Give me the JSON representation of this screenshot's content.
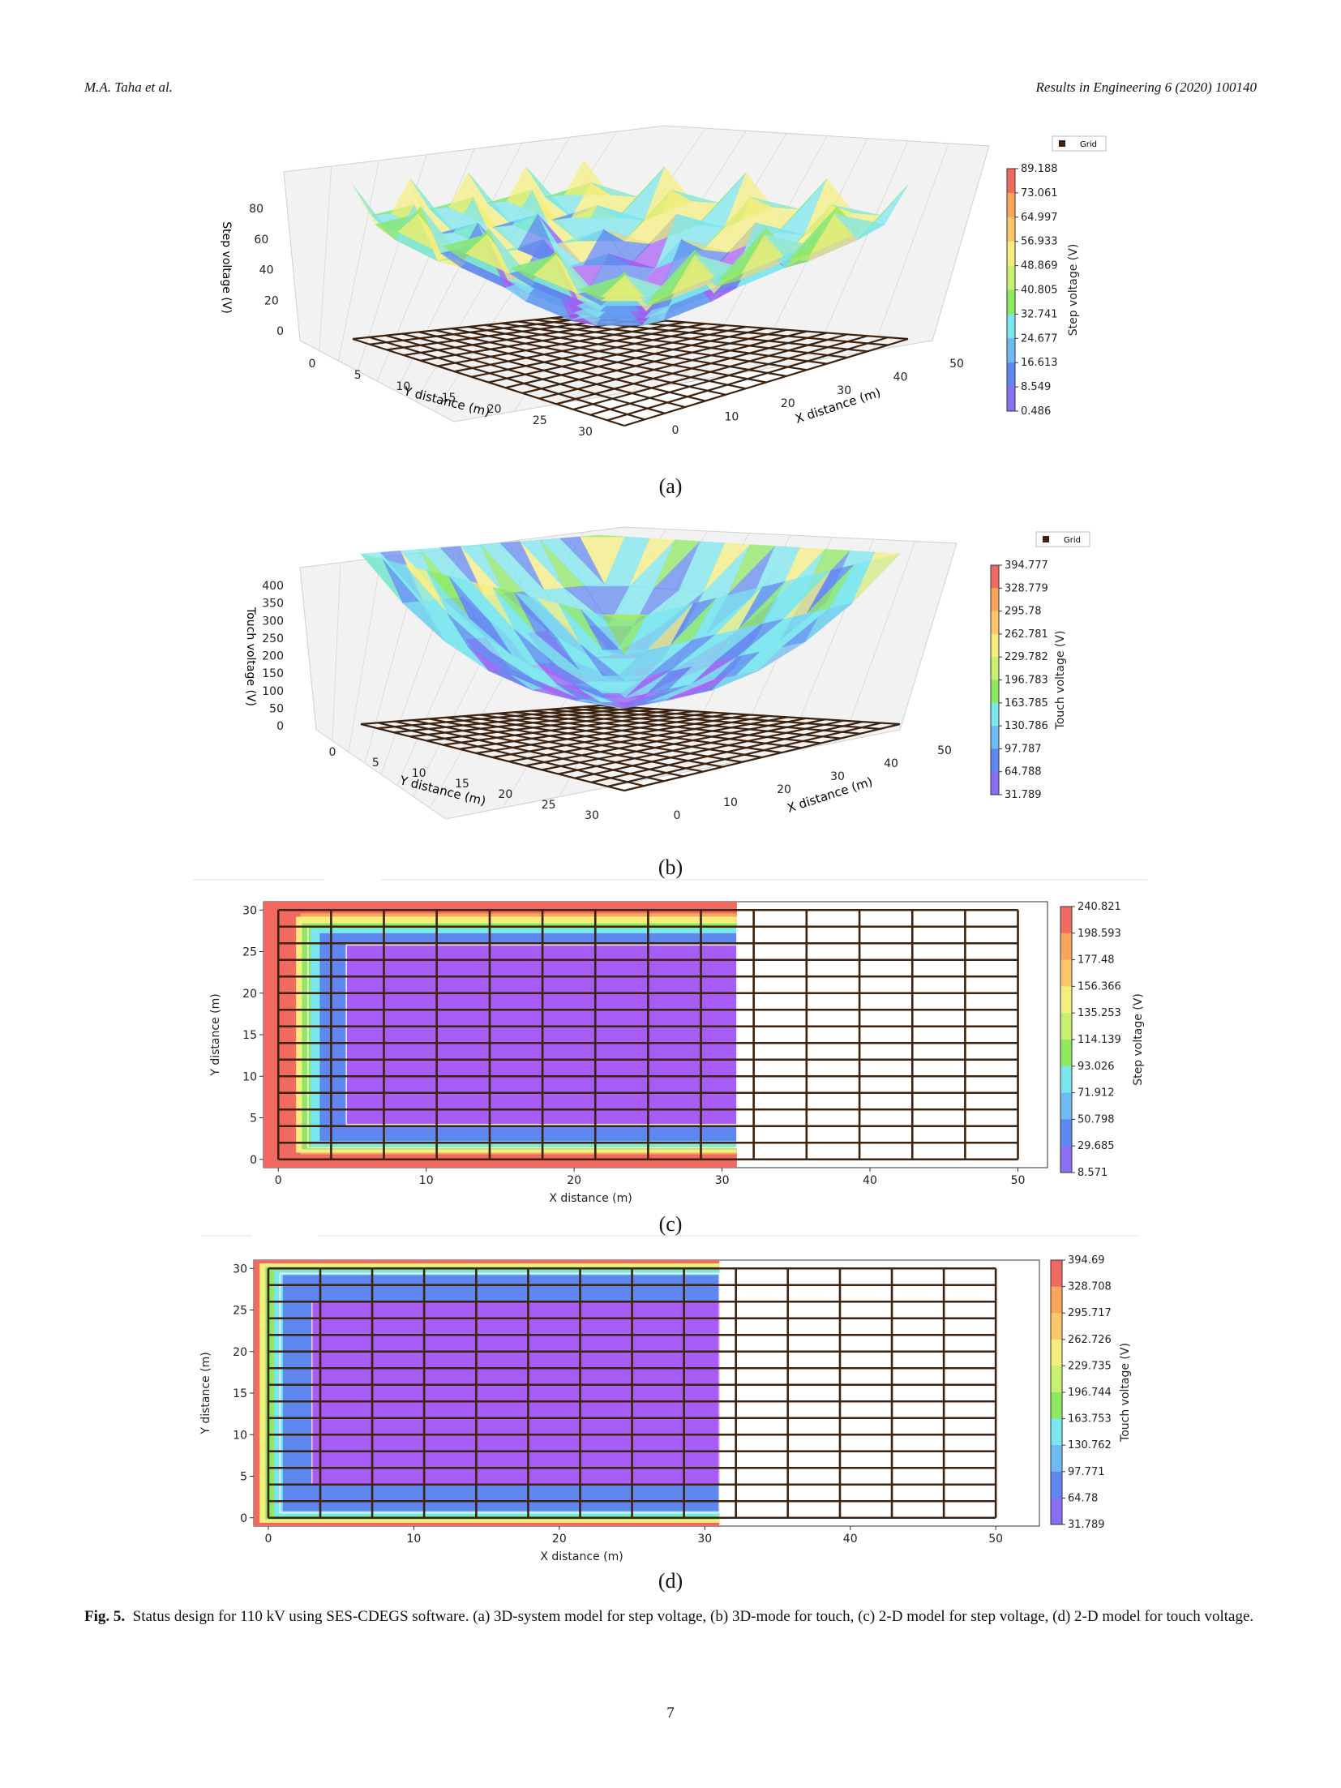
{
  "header": {
    "left": "M.A. Taha et al.",
    "right": "Results in Engineering 6 (2020) 100140"
  },
  "caption": {
    "label": "Fig. 5.",
    "text": "Status design for 110 kV using SES-CDEGS software. (a) 3D-system model for step voltage, (b) 3D-mode for touch, (c) 2-D model for step voltage, (d) 2-D model for touch voltage."
  },
  "page_number": "7",
  "colors": {
    "grid": "#3d2210",
    "red": "#f06a62",
    "orange": "#f9a65c",
    "yellow": "#f5ee7e",
    "green": "#8ee860",
    "cyan": "#7ae6ee",
    "blue": "#5f87f0",
    "purple": "#a65cf5"
  },
  "chart_data": [
    {
      "type": "surface3d",
      "panel": "(a)",
      "legend": "Grid",
      "zlabel": "Step voltage (V)",
      "xlabel": "X distance (m)",
      "ylabel": "Y distance (m)",
      "zticks": [
        "0",
        "20",
        "40",
        "60",
        "80"
      ],
      "xticks": [
        "0",
        "10",
        "20",
        "30",
        "40",
        "50"
      ],
      "yticks": [
        "0",
        "5",
        "10",
        "15",
        "20",
        "25",
        "30"
      ],
      "colorbar_label": "Step voltage (V)",
      "colorbar_ticks": [
        "89.188",
        "73.061",
        "64.997",
        "56.933",
        "48.869",
        "40.805",
        "32.741",
        "24.677",
        "16.613",
        "8.549",
        "0.486"
      ]
    },
    {
      "type": "surface3d",
      "panel": "(b)",
      "legend": "Grid",
      "zlabel": "Touch voltage (V)",
      "xlabel": "X distance (m)",
      "ylabel": "Y distance (m)",
      "zticks": [
        "0",
        "50",
        "100",
        "150",
        "200",
        "250",
        "300",
        "350",
        "400"
      ],
      "xticks": [
        "0",
        "10",
        "20",
        "30",
        "40",
        "50"
      ],
      "yticks": [
        "0",
        "5",
        "10",
        "15",
        "20",
        "25",
        "30"
      ],
      "colorbar_label": "Touch voltage (V)",
      "colorbar_ticks": [
        "394.777",
        "328.779",
        "295.78",
        "262.781",
        "229.782",
        "196.783",
        "163.785",
        "130.786",
        "97.787",
        "64.788",
        "31.789"
      ]
    },
    {
      "type": "heatmap",
      "panel": "(c)",
      "xlabel": "X distance (m)",
      "ylabel": "Y distance (m)",
      "xlim": [
        -1,
        52
      ],
      "ylim": [
        -1,
        31
      ],
      "xticks": [
        "0",
        "10",
        "20",
        "30",
        "40",
        "50"
      ],
      "yticks": [
        "0",
        "5",
        "10",
        "15",
        "20",
        "25",
        "30"
      ],
      "contour_extent_x": [
        0,
        31
      ],
      "grid_extent": {
        "x": [
          0,
          50
        ],
        "y": [
          0,
          30
        ]
      },
      "colorbar_label": "Step voltage (V)",
      "colorbar_ticks": [
        "240.821",
        "198.593",
        "177.48",
        "156.366",
        "135.253",
        "114.139",
        "93.026",
        "71.912",
        "50.798",
        "29.685",
        "8.571"
      ]
    },
    {
      "type": "heatmap",
      "panel": "(d)",
      "xlabel": "X distance (m)",
      "ylabel": "Y distance (m)",
      "xlim": [
        -1,
        53
      ],
      "ylim": [
        -1,
        31
      ],
      "xticks": [
        "0",
        "10",
        "20",
        "30",
        "40",
        "50"
      ],
      "yticks": [
        "0",
        "5",
        "10",
        "15",
        "20",
        "25",
        "30"
      ],
      "contour_extent_x": [
        0,
        31
      ],
      "grid_extent": {
        "x": [
          0,
          50
        ],
        "y": [
          0,
          30
        ]
      },
      "colorbar_label": "Touch voltage (V)",
      "colorbar_ticks": [
        "394.69",
        "328.708",
        "295.717",
        "262.726",
        "229.735",
        "196.744",
        "163.753",
        "130.762",
        "97.771",
        "64.78",
        "31.789"
      ]
    }
  ]
}
